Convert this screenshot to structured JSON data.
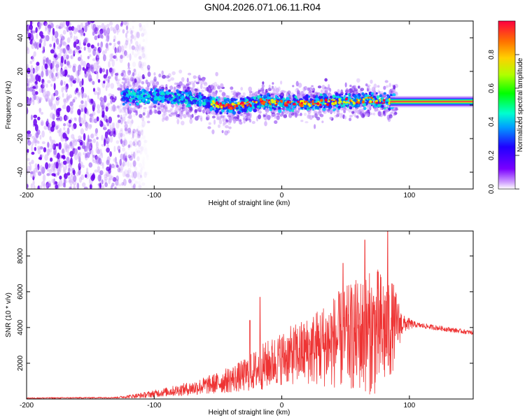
{
  "title": "GN04.2026.071.06.11.R04",
  "chart_data": [
    {
      "type": "heatmap",
      "panel": "top",
      "xlabel": "Height of straight line (km)",
      "ylabel": "Frequency (Hz)",
      "xlim": [
        -200,
        150
      ],
      "ylim": [
        -50,
        50
      ],
      "xticks": [
        -200,
        -100,
        0,
        100
      ],
      "yticks": [
        -40,
        -20,
        0,
        20,
        40
      ],
      "colorbar": {
        "label": "Normalized spectral amplitude",
        "range": [
          0,
          1
        ],
        "ticks": [
          0.0,
          0.2,
          0.4,
          0.6,
          0.8
        ]
      },
      "noise_region": {
        "x": [
          -200,
          -105
        ],
        "y": [
          -50,
          50
        ]
      },
      "signal_band": {
        "points": [
          {
            "x": -125,
            "y": 5
          },
          {
            "x": -100,
            "y": 5
          },
          {
            "x": -80,
            "y": 4
          },
          {
            "x": -65,
            "y": 3
          },
          {
            "x": -50,
            "y": 0
          },
          {
            "x": -40,
            "y": -1
          },
          {
            "x": -30,
            "y": 0
          },
          {
            "x": -15,
            "y": 2
          },
          {
            "x": 0,
            "y": 1
          },
          {
            "x": 20,
            "y": 1
          },
          {
            "x": 45,
            "y": 2
          },
          {
            "x": 70,
            "y": 3
          },
          {
            "x": 85,
            "y": 2
          },
          {
            "x": 150,
            "y": 2
          }
        ],
        "peak_amplitude": 1.0
      }
    },
    {
      "type": "line",
      "panel": "bottom",
      "xlabel": "Height of straight line (km)",
      "ylabel": "SNR (10 * v/v)",
      "xlim": [
        -200,
        150
      ],
      "ylim": [
        0,
        9400
      ],
      "xticks": [
        -200,
        -100,
        0,
        100
      ],
      "yticks": [
        2000,
        4000,
        6000,
        8000
      ],
      "color": "#ee3333",
      "series_name": "SNR",
      "baseline": [
        {
          "x": -200,
          "y": 50
        },
        {
          "x": -130,
          "y": 80
        },
        {
          "x": -110,
          "y": 200
        },
        {
          "x": -90,
          "y": 400
        },
        {
          "x": -70,
          "y": 600
        },
        {
          "x": -50,
          "y": 900
        },
        {
          "x": -30,
          "y": 1300
        },
        {
          "x": -15,
          "y": 1800
        },
        {
          "x": 0,
          "y": 2300
        },
        {
          "x": 20,
          "y": 2700
        },
        {
          "x": 40,
          "y": 3200
        },
        {
          "x": 60,
          "y": 3600
        },
        {
          "x": 80,
          "y": 3800
        },
        {
          "x": 90,
          "y": 4200
        },
        {
          "x": 100,
          "y": 4200
        },
        {
          "x": 150,
          "y": 3700
        }
      ],
      "amplitude": [
        {
          "x": -200,
          "y": 30
        },
        {
          "x": -130,
          "y": 40
        },
        {
          "x": -110,
          "y": 150
        },
        {
          "x": -90,
          "y": 250
        },
        {
          "x": -70,
          "y": 400
        },
        {
          "x": -50,
          "y": 600
        },
        {
          "x": -30,
          "y": 900
        },
        {
          "x": -15,
          "y": 1300
        },
        {
          "x": 0,
          "y": 1500
        },
        {
          "x": 20,
          "y": 1900
        },
        {
          "x": 40,
          "y": 2600
        },
        {
          "x": 60,
          "y": 3200
        },
        {
          "x": 75,
          "y": 3600
        },
        {
          "x": 85,
          "y": 3000
        },
        {
          "x": 95,
          "y": 500
        },
        {
          "x": 105,
          "y": 150
        },
        {
          "x": 150,
          "y": 120
        }
      ],
      "peaks": [
        {
          "x": -17,
          "y": 5700
        },
        {
          "x": -25,
          "y": 4400
        },
        {
          "x": 48,
          "y": 7600
        },
        {
          "x": 65,
          "y": 8900
        },
        {
          "x": 83,
          "y": 9400
        }
      ]
    }
  ]
}
